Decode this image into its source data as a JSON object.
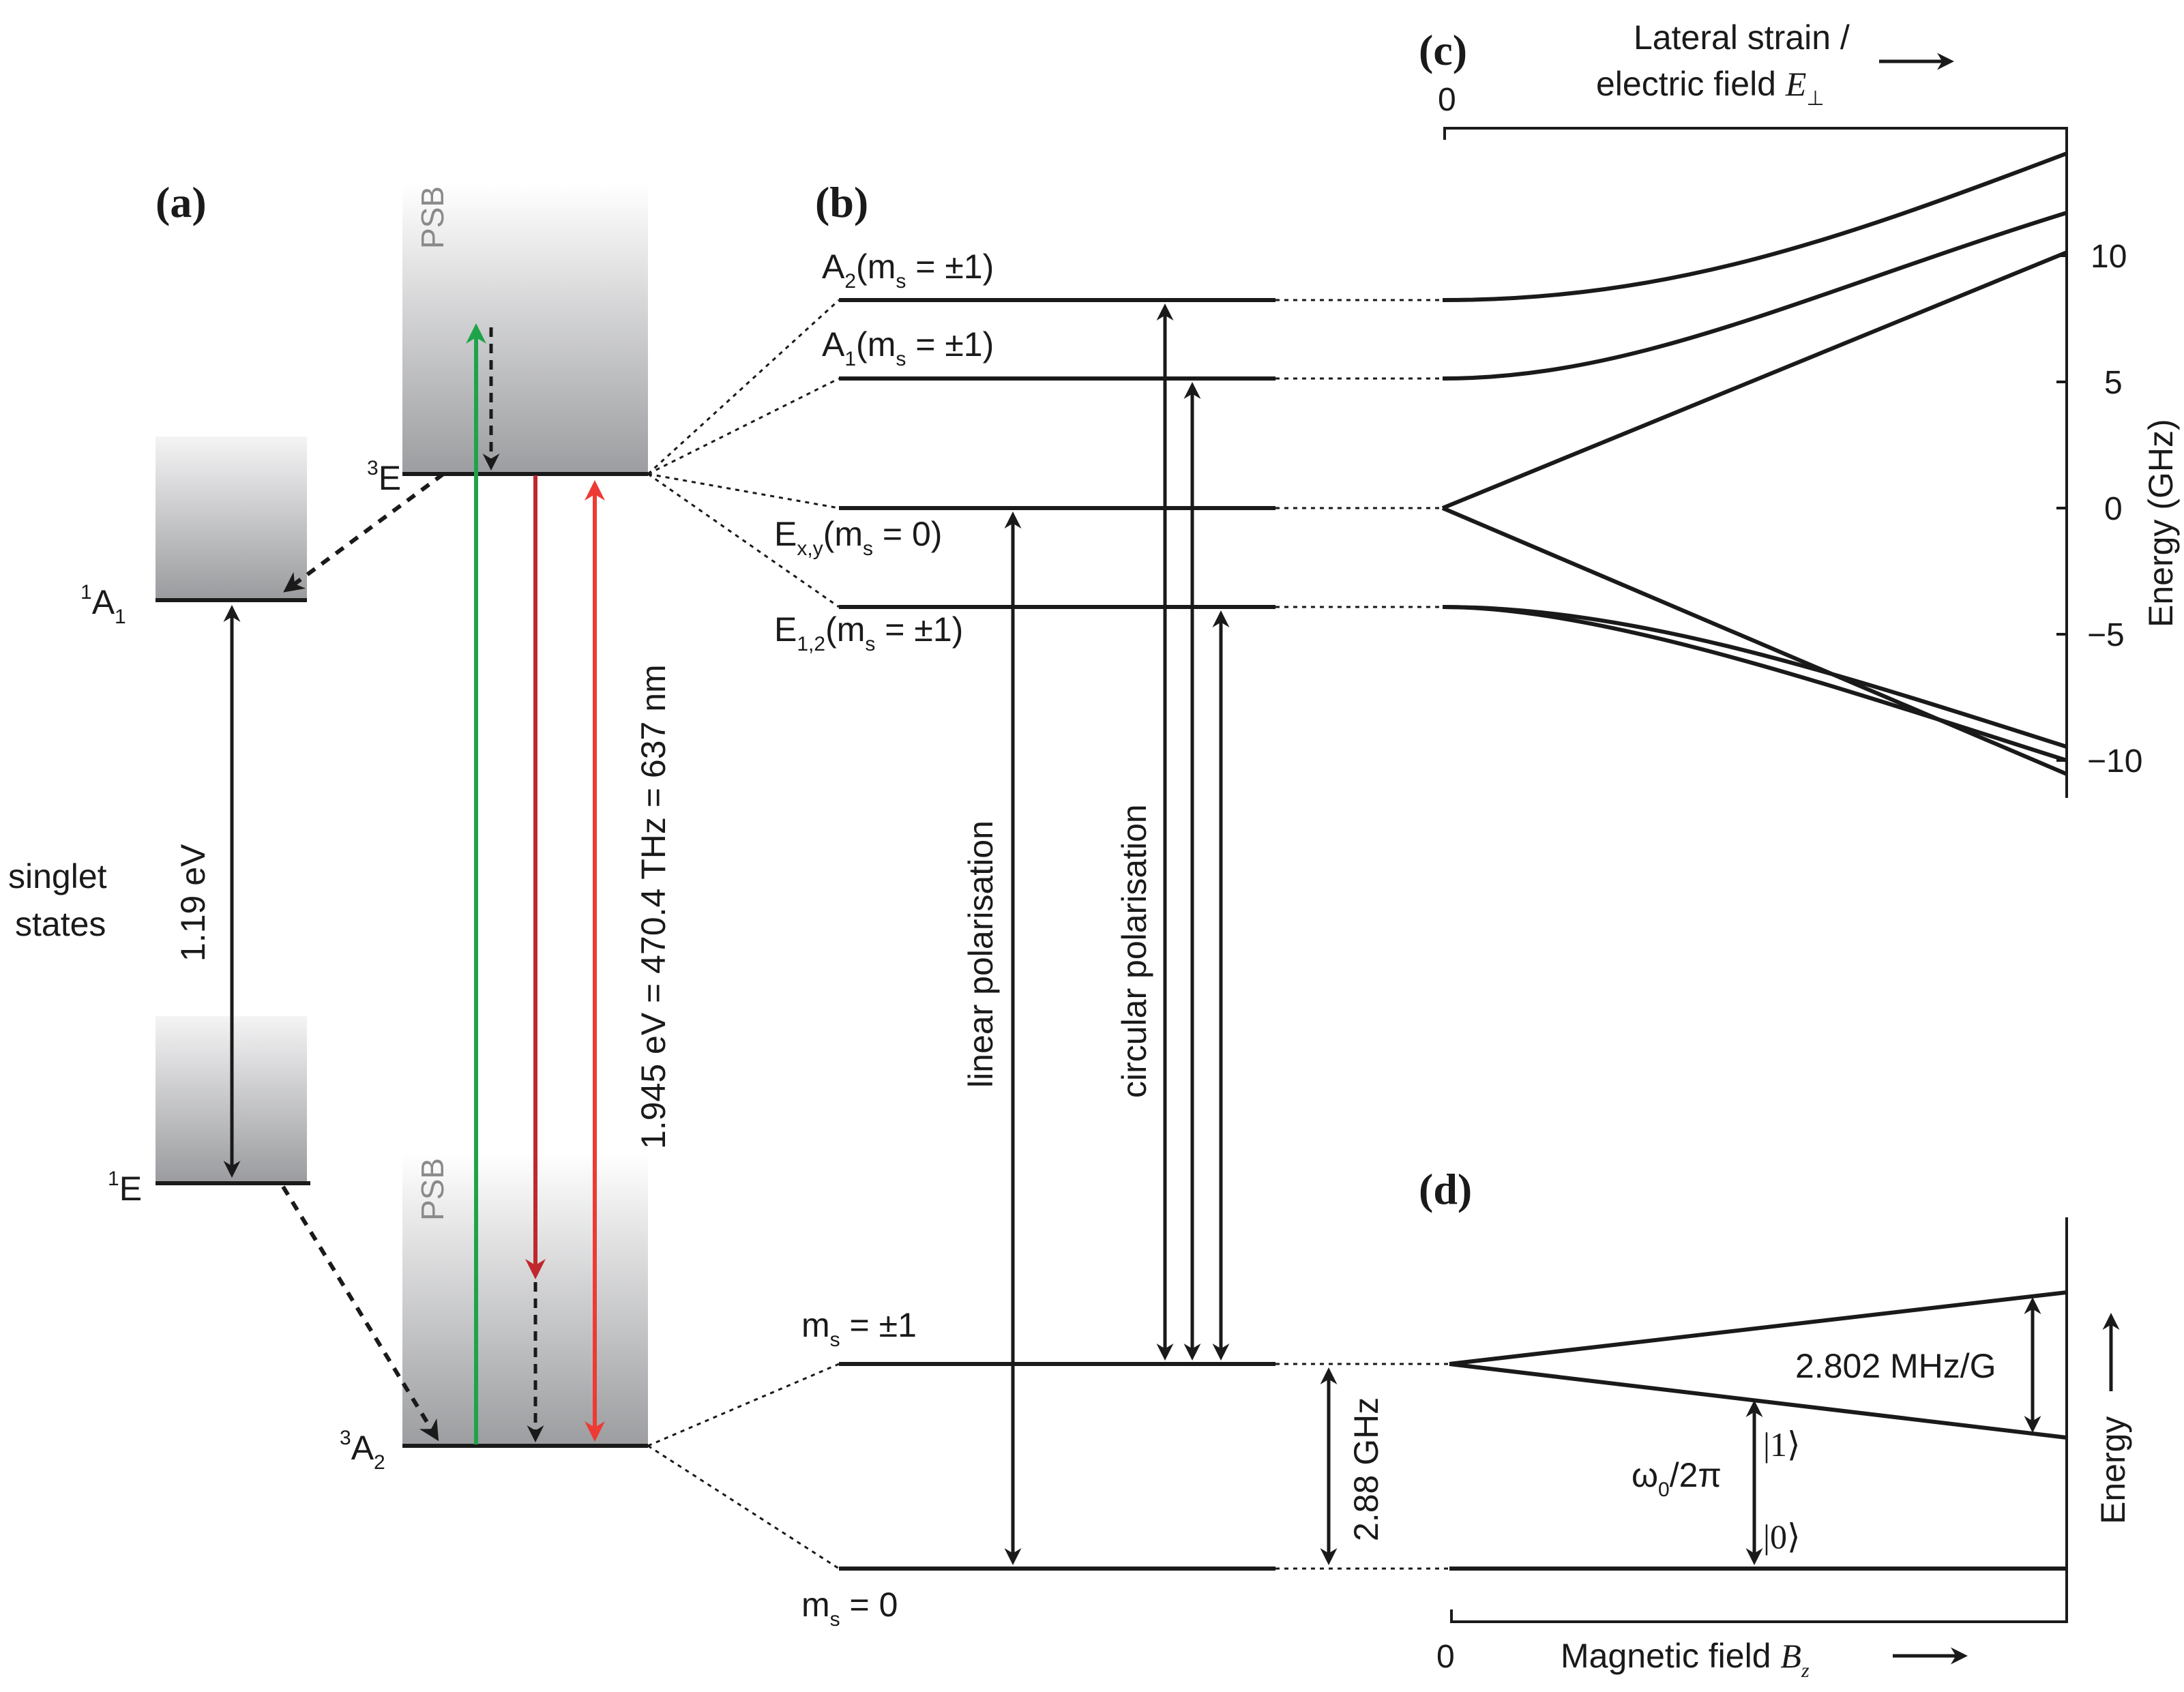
{
  "panels": {
    "a": "(a)",
    "b": "(b)",
    "c": "(c)",
    "d": "(d)"
  },
  "panel_a": {
    "psb_upper": "PSB",
    "psb_lower": "PSB",
    "level_3E": {
      "sup": "3",
      "main": "E"
    },
    "level_1A1": {
      "sup": "1",
      "main": "A",
      "sub": "1"
    },
    "level_1E": {
      "sup": "1",
      "main": "E"
    },
    "level_3A2": {
      "sup": "3",
      "main": "A",
      "sub": "2"
    },
    "singlet_line1": "singlet",
    "singlet_line2": "states",
    "singlet_gap": "1.19 eV",
    "zpl_label": "1.945 eV = 470.4 THz = 637 nm",
    "arrow_colors": {
      "green": "#1fa34a",
      "dark_red": "#c0282d",
      "red": "#ee3a34",
      "black": "#1a1a1a"
    }
  },
  "panel_b": {
    "levels": [
      {
        "main": "A",
        "sub": "2",
        "rest": "(m",
        "rest_sub": "s",
        "tail": " = ±1)"
      },
      {
        "main": "A",
        "sub": "1",
        "rest": "(m",
        "rest_sub": "s",
        "tail": " = ±1)"
      },
      {
        "main": "E",
        "sub": "x,y",
        "rest": "(m",
        "rest_sub": "s",
        "tail": " = 0)"
      },
      {
        "main": "E",
        "sub": "1,2",
        "rest": "(m",
        "rest_sub": "s",
        "tail": " = ±1)"
      }
    ],
    "ground_upper": {
      "main": "m",
      "sub": "s",
      "tail": " = ±1"
    },
    "ground_lower": {
      "main": "m",
      "sub": "s",
      "tail": " = 0"
    },
    "linear_label": "linear polarisation",
    "circular_label": "circular polarisation",
    "zfs_label": "2.88 GHz"
  },
  "panel_c": {
    "xlabel_line1": "Lateral strain /",
    "xlabel_line2": "electric field ",
    "xlabel_symbol": "E",
    "xlabel_sub": "⊥",
    "x_zero": "0",
    "ylabel": "Energy (GHz)",
    "yticks": [
      "10",
      "5",
      "0",
      "−5",
      "−10"
    ]
  },
  "panel_d": {
    "xlabel": "Magnetic field ",
    "xlabel_symbol": "B",
    "xlabel_sub": "z",
    "x_zero": "0",
    "ylabel": "Energy",
    "slope_label": "2.802 MHz/G",
    "omega_label": "ω",
    "omega_sub": "0",
    "omega_tail": "/2π",
    "ket_1": "|1⟩",
    "ket_0": "|0⟩"
  }
}
